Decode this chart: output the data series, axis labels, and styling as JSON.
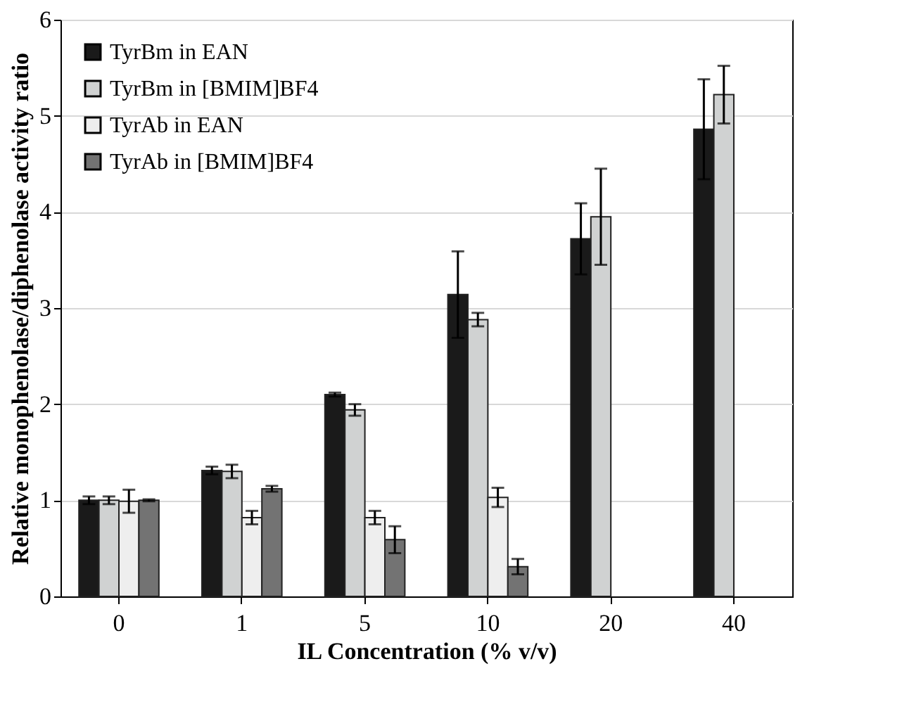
{
  "chart_data": {
    "type": "bar",
    "xlabel": "IL Concentration (% v/v)",
    "ylabel": "Relative monophenolase/diphenolase activity ratio",
    "categories": [
      "0",
      "1",
      "5",
      "10",
      "20",
      "40"
    ],
    "series": [
      {
        "name": "TyrBm in EAN",
        "color": "#1a1a1a",
        "values": [
          1.0,
          1.31,
          2.1,
          3.14,
          3.72,
          4.86
        ],
        "errors": [
          0.04,
          0.04,
          0.02,
          0.45,
          0.37,
          0.52
        ]
      },
      {
        "name": "TyrBm in [BMIM]BF4",
        "color": "#d0d2d2",
        "values": [
          1.0,
          1.3,
          1.94,
          2.88,
          3.95,
          5.22
        ],
        "errors": [
          0.04,
          0.07,
          0.06,
          0.07,
          0.5,
          0.3
        ]
      },
      {
        "name": "TyrAb in EAN",
        "color": "#eeeeee",
        "values": [
          0.99,
          0.82,
          0.82,
          1.03,
          null,
          null
        ],
        "errors": [
          0.12,
          0.07,
          0.07,
          0.1,
          null,
          null
        ]
      },
      {
        "name": "TyrAb in [BMIM]BF4",
        "color": "#737373",
        "values": [
          1.0,
          1.12,
          0.59,
          0.31,
          null,
          null
        ],
        "errors": [
          0.01,
          0.03,
          0.14,
          0.08,
          null,
          null
        ]
      }
    ],
    "ylim": [
      0,
      6
    ],
    "yticks": [
      0,
      1,
      2,
      3,
      4,
      5,
      6
    ],
    "grid": "y",
    "legend": "top left"
  }
}
